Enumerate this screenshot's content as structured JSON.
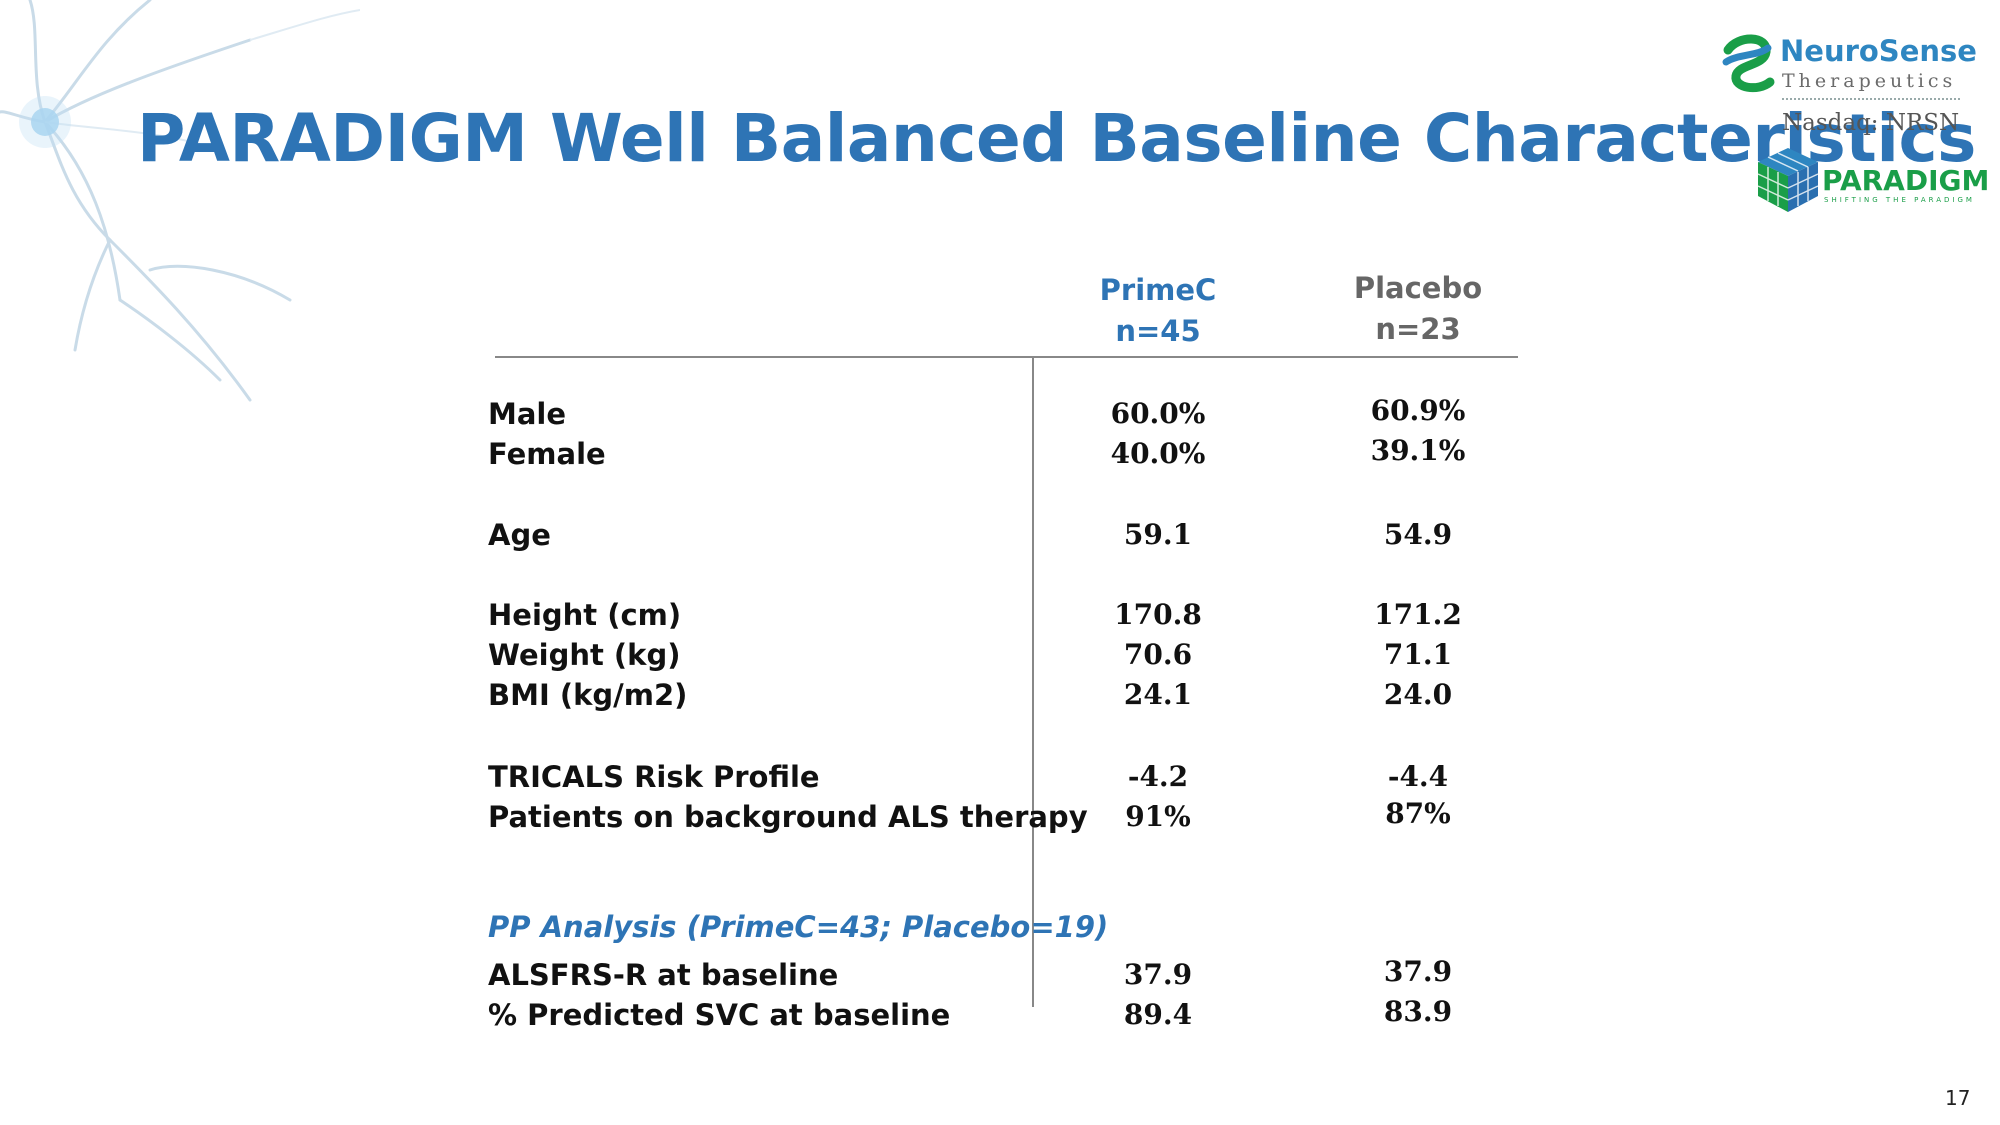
{
  "slide": {
    "title": "PARADIGM Well Balanced Baseline Characteristics",
    "page_number": "17"
  },
  "logos": {
    "neurosense": {
      "name": "NeuroSense",
      "subtitle": "Therapeutics",
      "ticker": "Nasdaq: NRSN"
    },
    "paradigm": {
      "name": "PARADIGM",
      "tagline": "SHIFTING THE PARADIGM"
    }
  },
  "table": {
    "columns": [
      {
        "name": "PrimeC",
        "n": "n=45"
      },
      {
        "name": "Placebo",
        "n": "n=23"
      }
    ],
    "rows": [
      {
        "label": "Male",
        "primec": "60.0%",
        "placebo": "60.9%"
      },
      {
        "label": "Female",
        "primec": "40.0%",
        "placebo": "39.1%"
      },
      {
        "label": "Age",
        "primec": "59.1",
        "placebo": "54.9"
      },
      {
        "label": "Height (cm)",
        "primec": "170.8",
        "placebo": "171.2"
      },
      {
        "label": "Weight (kg)",
        "primec": "70.6",
        "placebo": "71.1"
      },
      {
        "label": "BMI (kg/m2)",
        "primec": "24.1",
        "placebo": "24.0"
      },
      {
        "label": "TRICALS Risk Profile",
        "primec": "-4.2",
        "placebo": "-4.4"
      },
      {
        "label": "Patients on background ALS therapy",
        "primec": "91%",
        "placebo": "87%"
      }
    ],
    "pp_heading": "PP Analysis (PrimeC=43; Placebo=19)",
    "pp_rows": [
      {
        "label": "ALSFRS-R at baseline",
        "primec": "37.9",
        "placebo": "37.9"
      },
      {
        "label": "% Predicted SVC at baseline",
        "primec": "89.4",
        "placebo": "83.9"
      }
    ]
  },
  "colors": {
    "title": "#2e74b5",
    "primec": "#2e74b5",
    "placebo": "#666666",
    "paradigm_green": "#1a9e48"
  }
}
